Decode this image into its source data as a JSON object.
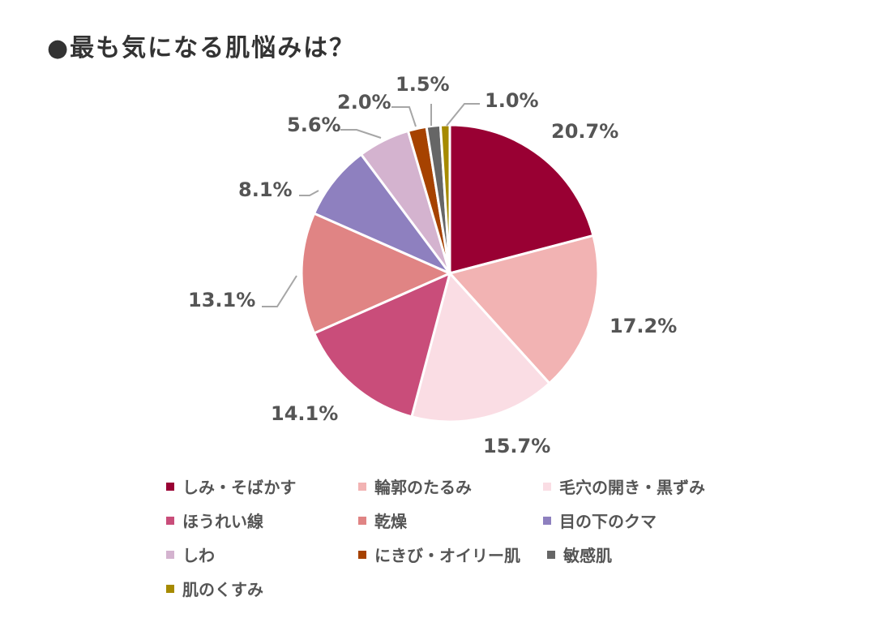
{
  "title": "●最も気になる肌悩みは？",
  "chart_data": {
    "type": "pie",
    "title": "●最も気になる肌悩みは？",
    "unit": "%",
    "start_angle_deg": 0,
    "direction": "clockwise",
    "legend_position": "bottom",
    "slices": [
      {
        "label": "しみ・そばかす",
        "value": 20.7,
        "display": "20.7%",
        "color": "#990033"
      },
      {
        "label": "輪郭のたるみ",
        "value": 17.2,
        "display": "17.2%",
        "color": "#F2B3B3"
      },
      {
        "label": "毛穴の開き・黒ずみ",
        "value": 15.7,
        "display": "15.7%",
        "color": "#FADDE4"
      },
      {
        "label": "ほうれい線",
        "value": 14.1,
        "display": "14.1%",
        "color": "#C94D7A"
      },
      {
        "label": "乾燥",
        "value": 13.1,
        "display": "13.1%",
        "color": "#E08484"
      },
      {
        "label": "目の下のクマ",
        "value": 8.1,
        "display": "8.1%",
        "color": "#8E80BF"
      },
      {
        "label": "しわ",
        "value": 5.6,
        "display": "5.6%",
        "color": "#D4B3CF"
      },
      {
        "label": "にきび・オイリー肌",
        "value": 2.0,
        "display": "2.0%",
        "color": "#A64200"
      },
      {
        "label": "敏感肌",
        "value": 1.5,
        "display": "1.5%",
        "color": "#666666"
      },
      {
        "label": "肌のくすみ",
        "value": 1.0,
        "display": "1.0%",
        "color": "#A68A00"
      }
    ]
  }
}
